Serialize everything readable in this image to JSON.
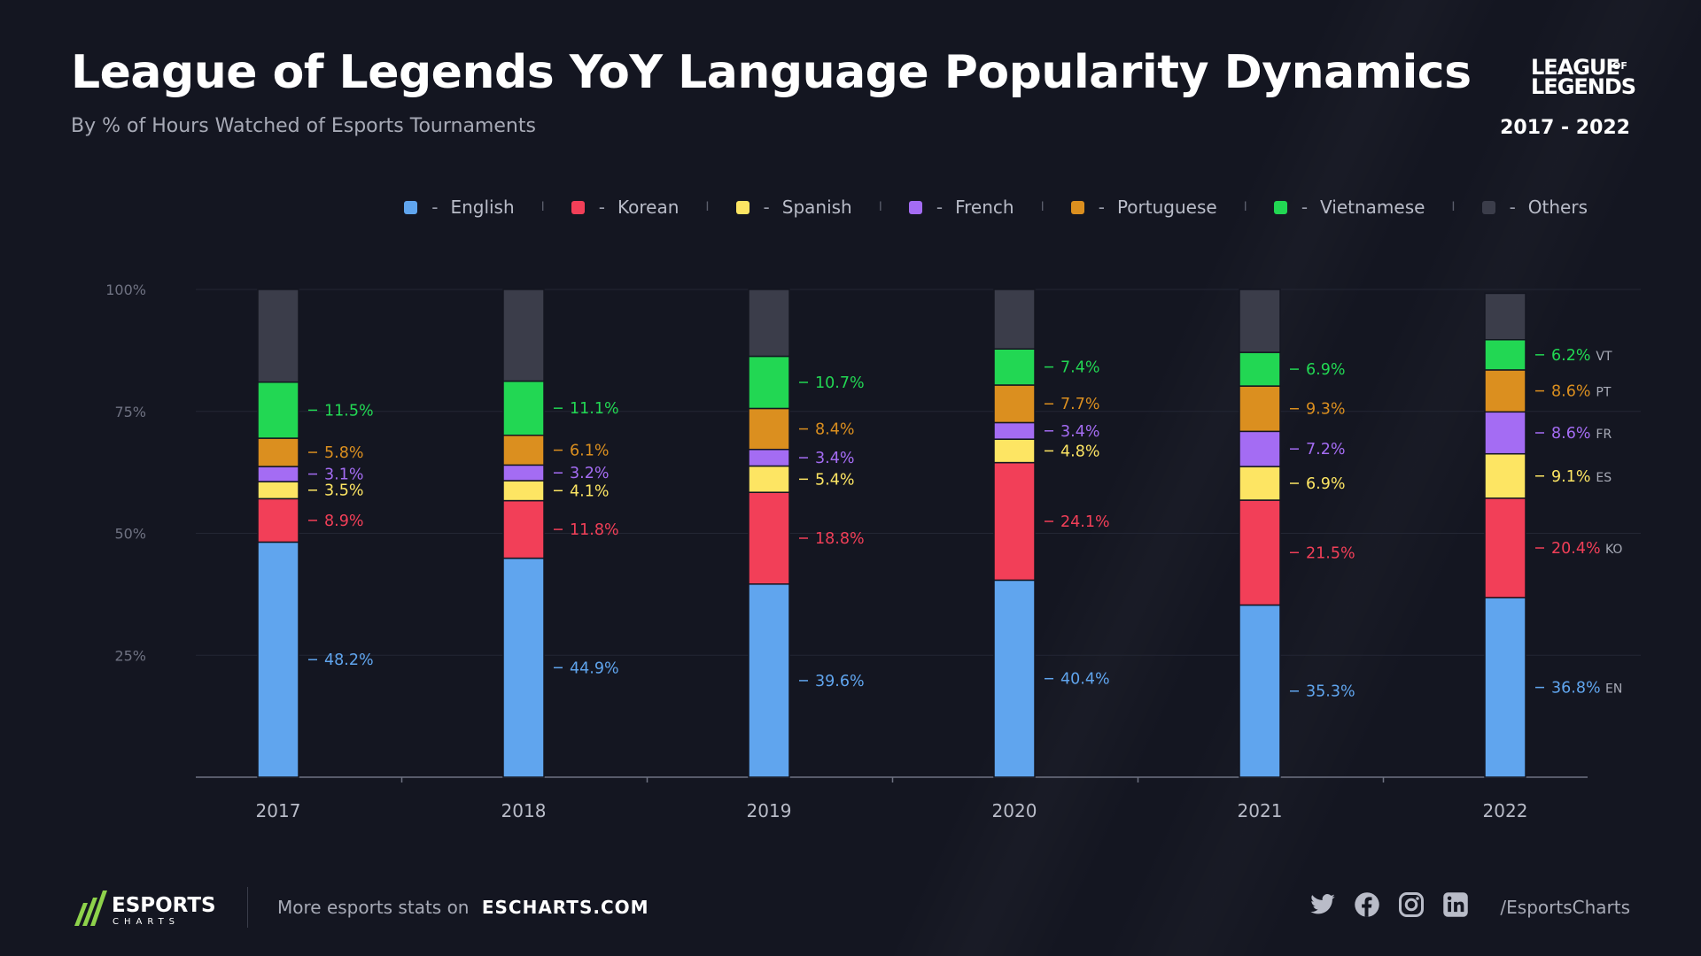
{
  "header": {
    "title": "League of Legends YoY Language Popularity Dynamics",
    "subtitle": "By % of Hours Watched of Esports Tournaments",
    "brand_logo_line1": "LEAGUE",
    "brand_logo_of": "OF",
    "brand_logo_line2": "LEGENDS",
    "period": "2017 - 2022"
  },
  "legend_sep": "I",
  "legend_dash": "-",
  "chart_data": {
    "type": "bar",
    "stacked": true,
    "categories": [
      "2017",
      "2018",
      "2019",
      "2020",
      "2021",
      "2022"
    ],
    "y_ticks": [
      "100%",
      "75%",
      "50%",
      "25%"
    ],
    "y_tick_values": [
      100,
      75,
      50,
      25
    ],
    "ylim": [
      0,
      100
    ],
    "legend_placement": "top-right",
    "series": [
      {
        "name": "English",
        "abbr": "EN",
        "color": "#60a5ee",
        "values": [
          48.2,
          44.9,
          39.6,
          40.4,
          35.3,
          36.8
        ],
        "labels": [
          "48.2%",
          "44.9%",
          "39.6%",
          "40.4%",
          "35.3%",
          "36.8%"
        ]
      },
      {
        "name": "Korean",
        "abbr": "KO",
        "color": "#f23f58",
        "values": [
          8.9,
          11.8,
          18.8,
          24.1,
          21.5,
          20.4
        ],
        "labels": [
          "8.9%",
          "11.8%",
          "18.8%",
          "24.1%",
          "21.5%",
          "20.4%"
        ]
      },
      {
        "name": "Spanish",
        "abbr": "ES",
        "color": "#fde563",
        "values": [
          3.5,
          4.1,
          5.4,
          4.8,
          6.9,
          9.1
        ],
        "labels": [
          "3.5%",
          "4.1%",
          "5.4%",
          "4.8%",
          "6.9%",
          "9.1%"
        ]
      },
      {
        "name": "French",
        "abbr": "FR",
        "color": "#a46cf3",
        "values": [
          3.1,
          3.2,
          3.4,
          3.4,
          7.2,
          8.6
        ],
        "labels": [
          "3.1%",
          "3.2%",
          "3.4%",
          "3.4%",
          "7.2%",
          "8.6%"
        ]
      },
      {
        "name": "Portuguese",
        "abbr": "PT",
        "color": "#db8f1f",
        "values": [
          5.8,
          6.1,
          8.4,
          7.7,
          9.3,
          8.6
        ],
        "labels": [
          "5.8%",
          "6.1%",
          "8.4%",
          "7.7%",
          "9.3%",
          "8.6%"
        ]
      },
      {
        "name": "Vietnamese",
        "abbr": "VT",
        "color": "#22d753",
        "values": [
          11.5,
          11.1,
          10.7,
          7.4,
          6.9,
          6.2
        ],
        "labels": [
          "11.5%",
          "11.1%",
          "10.7%",
          "7.4%",
          "6.9%",
          "6.2%"
        ]
      },
      {
        "name": "Others",
        "abbr": "",
        "color": "#3b3d4a",
        "values": [
          19.0,
          18.8,
          13.7,
          12.2,
          12.9,
          9.5
        ],
        "labels": [
          "",
          "",
          "",
          "",
          "",
          ""
        ]
      }
    ]
  },
  "footer": {
    "brand_name": "ESPORTS",
    "brand_sub": "CHARTS",
    "text": "More esports stats on",
    "site": "ESCHARTS.COM",
    "handle": "/EsportsCharts",
    "socials": [
      "twitter-icon",
      "facebook-icon",
      "instagram-icon",
      "linkedin-icon"
    ]
  }
}
